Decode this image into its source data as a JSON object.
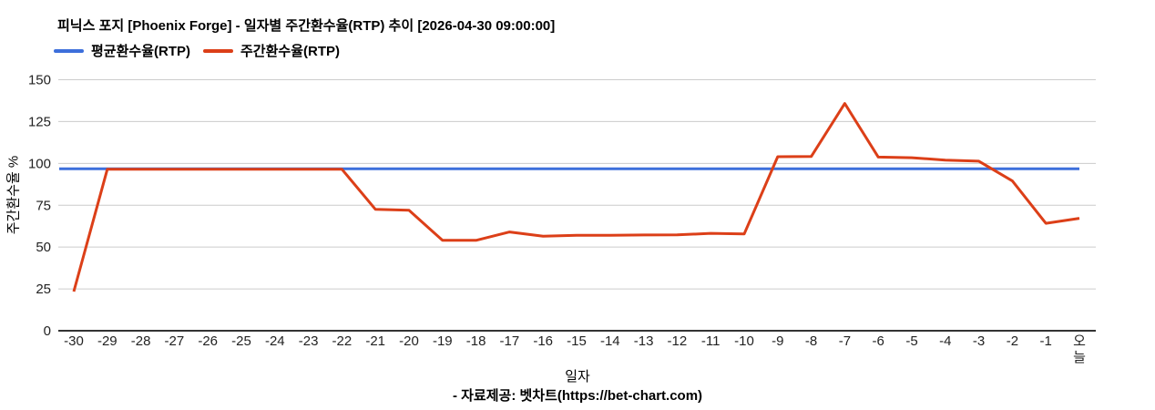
{
  "title": "피닉스 포지 [Phoenix Forge] - 일자별 주간환수율(RTP) 추이 [2026-04-30 09:00:00]",
  "footer": "- 자료제공: 벳차트(https://bet-chart.com)",
  "colors": {
    "average_line": "#3D6FDB",
    "weekly_line": "#DC3F18",
    "gridline": "#CCCCCC",
    "axis_line": "#333333",
    "tick_text": "#222222",
    "text": "#000000",
    "background": "#FFFFFF"
  },
  "chart_data": {
    "type": "line",
    "title": "피닉스 포지 [Phoenix Forge] - 일자별 주간환수율(RTP) 추이 [2026-04-30 09:00:00]",
    "xlabel": "일자",
    "ylabel": "주간환수율 %",
    "ylim": [
      0,
      150
    ],
    "yticks": [
      0,
      25,
      50,
      75,
      100,
      125,
      150
    ],
    "grid": "horizontal-only",
    "legend_position": "top-left",
    "x_categories": [
      "-30",
      "-29",
      "-28",
      "-27",
      "-26",
      "-25",
      "-24",
      "-23",
      "-22",
      "-21",
      "-20",
      "-19",
      "-18",
      "-17",
      "-16",
      "-15",
      "-14",
      "-13",
      "-12",
      "-11",
      "-10",
      "-9",
      "-8",
      "-7",
      "-6",
      "-5",
      "-4",
      "-3",
      "-2",
      "-1",
      "오늘"
    ],
    "series": [
      {
        "name": "평균환수율(RTP)",
        "color": "#3D6FDB",
        "render": "constant",
        "value": 96.8
      },
      {
        "name": "주간환수율(RTP)",
        "color": "#DC3F18",
        "values": [
          23.4,
          96.5,
          96.5,
          96.5,
          96.5,
          96.5,
          96.5,
          96.5,
          96.5,
          72.5,
          72.0,
          54.0,
          54.0,
          59.0,
          56.5,
          57.0,
          57.0,
          57.2,
          57.3,
          58.2,
          57.8,
          104.0,
          104.1,
          135.8,
          103.8,
          103.4,
          102.0,
          101.3,
          89.5,
          64.2,
          67.2
        ]
      }
    ]
  }
}
